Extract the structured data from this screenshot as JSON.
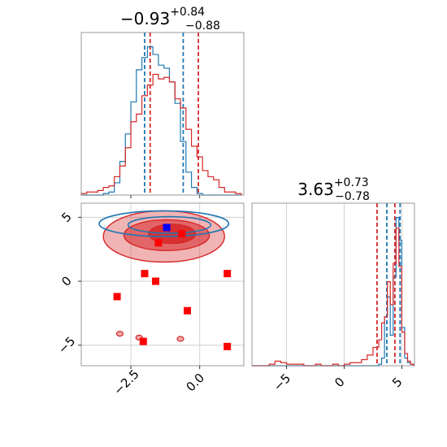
{
  "chart_data": {
    "type": "corner",
    "colors": {
      "blue": "#1f77b4",
      "red": "#d62728",
      "grid": "#c8c8c8",
      "axis": "#808080"
    },
    "panels": [
      {
        "id": "hist-x",
        "type": "histogram",
        "title": {
          "value": "−0.93",
          "plus": "+0.84",
          "minus": "−0.88"
        },
        "xlim": [
          -4.3,
          1.6
        ],
        "ylim": [
          0,
          1
        ],
        "quantile_lines": {
          "blue": [
            -2.0,
            -0.6
          ],
          "red": [
            -1.8,
            -0.05
          ]
        },
        "series": [
          {
            "color": "#1f77b4",
            "bin_edges": [
              -4.3,
              -4.1,
              -3.9,
              -3.7,
              -3.5,
              -3.3,
              -3.1,
              -2.9,
              -2.7,
              -2.5,
              -2.3,
              -2.1,
              -1.9,
              -1.7,
              -1.5,
              -1.3,
              -1.1,
              -0.9,
              -0.7,
              -0.5,
              -0.3,
              -0.1,
              0.1,
              0.3,
              0.5,
              0.7,
              0.9,
              1.1,
              1.3,
              1.5
            ],
            "values": [
              0,
              0,
              0,
              0,
              0.01,
              0.02,
              0.08,
              0.22,
              0.4,
              0.61,
              0.82,
              0.9,
              0.97,
              0.92,
              0.85,
              0.83,
              0.74,
              0.6,
              0.35,
              0.15,
              0.05,
              0.01,
              0,
              0,
              0,
              0,
              0,
              0,
              0
            ]
          },
          {
            "color": "#d62728",
            "bin_edges": [
              -4.3,
              -4.1,
              -3.9,
              -3.7,
              -3.5,
              -3.3,
              -3.1,
              -2.9,
              -2.7,
              -2.5,
              -2.3,
              -2.1,
              -1.9,
              -1.7,
              -1.5,
              -1.3,
              -1.1,
              -0.9,
              -0.7,
              -0.5,
              -0.3,
              -0.1,
              0.1,
              0.3,
              0.5,
              0.7,
              0.9,
              1.1,
              1.3,
              1.5
            ],
            "values": [
              0.01,
              0.02,
              0.02,
              0.03,
              0.05,
              0.06,
              0.12,
              0.19,
              0.31,
              0.48,
              0.53,
              0.65,
              0.72,
              0.79,
              0.76,
              0.77,
              0.74,
              0.63,
              0.57,
              0.43,
              0.32,
              0.25,
              0.16,
              0.12,
              0.1,
              0.05,
              0.02,
              0.02,
              0.01
            ]
          }
        ]
      },
      {
        "id": "scatter-2d",
        "type": "scatter",
        "xlim": [
          -4.3,
          1.6
        ],
        "ylim": [
          -6.6,
          6.1
        ],
        "xticks": [
          -2.5,
          0.0
        ],
        "xtick_labels": [
          "−2.5",
          "0.0"
        ],
        "yticks": [
          -5,
          0,
          5
        ],
        "ytick_labels": [
          "−5",
          "0",
          "5"
        ],
        "contours": {
          "red": [
            {
              "level": "outer",
              "cx": -1.3,
              "cy": 3.5,
              "rx": 2.2,
              "ry": 2.0
            },
            {
              "level": "inner",
              "cx": -1.2,
              "cy": 3.6,
              "rx": 1.55,
              "ry": 1.2
            },
            {
              "level": "core",
              "cx": -1.0,
              "cy": 3.7,
              "rx": 0.85,
              "ry": 0.75
            }
          ],
          "blue": [
            {
              "level": "outer",
              "cx": -1.3,
              "cy": 4.5,
              "rx": 2.35,
              "ry": 1.0
            },
            {
              "level": "inner",
              "cx": -1.1,
              "cy": 4.4,
              "rx": 1.5,
              "ry": 0.65
            }
          ]
        },
        "red_islands": [
          {
            "x": -2.9,
            "y": -4.1
          },
          {
            "x": -2.2,
            "y": -4.4
          },
          {
            "x": -0.7,
            "y": -4.5
          }
        ],
        "points": [
          {
            "x": -1.2,
            "y": 4.2,
            "color": "#0000ff"
          },
          {
            "x": -0.65,
            "y": 3.7,
            "color": "#ff0000"
          },
          {
            "x": -1.5,
            "y": 3.0,
            "color": "#ff0000"
          },
          {
            "x": -2.0,
            "y": 0.6,
            "color": "#ff0000"
          },
          {
            "x": -1.6,
            "y": 0.0,
            "color": "#ff0000"
          },
          {
            "x": 1.0,
            "y": 0.6,
            "color": "#ff0000"
          },
          {
            "x": -3.0,
            "y": -1.2,
            "color": "#ff0000"
          },
          {
            "x": -0.45,
            "y": -2.3,
            "color": "#ff0000"
          },
          {
            "x": -2.05,
            "y": -4.7,
            "color": "#ff0000"
          },
          {
            "x": 1.0,
            "y": -5.1,
            "color": "#ff0000"
          }
        ]
      },
      {
        "id": "hist-y",
        "type": "histogram",
        "title": {
          "value": "3.63",
          "plus": "+0.73",
          "minus": "−0.78"
        },
        "xlim": [
          -8.0,
          6.1
        ],
        "ylim": [
          0,
          1
        ],
        "xticks": [
          -5,
          0,
          5
        ],
        "xtick_labels": [
          "−5",
          "0",
          "5"
        ],
        "quantile_lines": {
          "blue": [
            3.7,
            4.85
          ],
          "red": [
            2.85,
            4.4
          ]
        },
        "series": [
          {
            "color": "#1f77b4",
            "bin_edges": [
              -8,
              -7.5,
              -7,
              -6.5,
              -6,
              -5.5,
              -5,
              -4.5,
              -4,
              -3.5,
              -3,
              -2.5,
              -2,
              -1.5,
              -1,
              -0.5,
              0,
              0.5,
              1,
              1.5,
              2,
              2.5,
              3,
              3.25,
              3.5,
              3.75,
              4,
              4.25,
              4.5,
              4.75,
              5,
              5.25,
              5.5,
              5.75,
              6
            ],
            "values": [
              0,
              0,
              0,
              0,
              0,
              0,
              0,
              0,
              0,
              0,
              0,
              0,
              0,
              0,
              0,
              0,
              0,
              0,
              0,
              0,
              0,
              0,
              0.01,
              0.05,
              0.32,
              0.45,
              0.2,
              0.58,
              0.97,
              0.82,
              0.25,
              0.05,
              0.02,
              0.01
            ]
          },
          {
            "color": "#d62728",
            "bin_edges": [
              -8,
              -7.5,
              -7,
              -6.5,
              -6,
              -5.5,
              -5,
              -4.5,
              -4,
              -3.5,
              -3,
              -2.5,
              -2,
              -1.5,
              -1,
              -0.5,
              0,
              0.5,
              1,
              1.5,
              2,
              2.5,
              3,
              3.25,
              3.5,
              3.75,
              4,
              4.25,
              4.5,
              4.75,
              5,
              5.25,
              5.5,
              5.75,
              6
            ],
            "values": [
              0,
              0,
              0,
              0.01,
              0.03,
              0.02,
              0.01,
              0.01,
              0.01,
              0,
              0,
              0.01,
              0,
              0,
              0.01,
              0,
              0.01,
              0.02,
              0.02,
              0.04,
              0.07,
              0.12,
              0.17,
              0.28,
              0.32,
              0.55,
              0.4,
              0.67,
              0.9,
              0.65,
              0.22,
              0.08,
              0.03,
              0.01
            ]
          }
        ]
      }
    ]
  }
}
